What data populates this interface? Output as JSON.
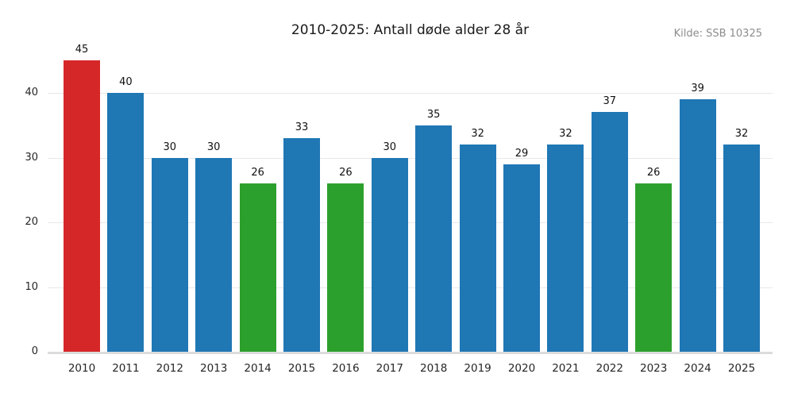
{
  "title": "2010-2025: Antall døde alder 28 år",
  "source": "Kilde: SSB 10325",
  "palette": {
    "red": "#d62728",
    "blue": "#1f77b4",
    "green": "#2ca02c",
    "grid": "#e8e8e8",
    "axis": "#dcdcdc",
    "source_text": "#8c8c8c",
    "label_text": "#111111"
  },
  "chart_data": {
    "type": "bar",
    "title": "2010-2025: Antall døde alder 28 år",
    "subtitle": "",
    "xlabel": "",
    "ylabel": "",
    "categories": [
      "2010",
      "2011",
      "2012",
      "2013",
      "2014",
      "2015",
      "2016",
      "2017",
      "2018",
      "2019",
      "2020",
      "2021",
      "2022",
      "2023",
      "2024",
      "2025"
    ],
    "values": [
      45,
      40,
      30,
      30,
      26,
      33,
      26,
      30,
      35,
      32,
      29,
      32,
      37,
      26,
      39,
      32
    ],
    "bar_colors": [
      "#d62728",
      "#1f77b4",
      "#1f77b4",
      "#1f77b4",
      "#2ca02c",
      "#1f77b4",
      "#2ca02c",
      "#1f77b4",
      "#1f77b4",
      "#1f77b4",
      "#1f77b4",
      "#1f77b4",
      "#1f77b4",
      "#2ca02c",
      "#1f77b4",
      "#1f77b4"
    ],
    "value_labels_shown": true,
    "ylim": [
      0,
      47
    ],
    "yticks": [
      0,
      10,
      20,
      30,
      40
    ],
    "grid": "horizontal",
    "legend": "none",
    "annotation": "Kilde: SSB 10325"
  }
}
